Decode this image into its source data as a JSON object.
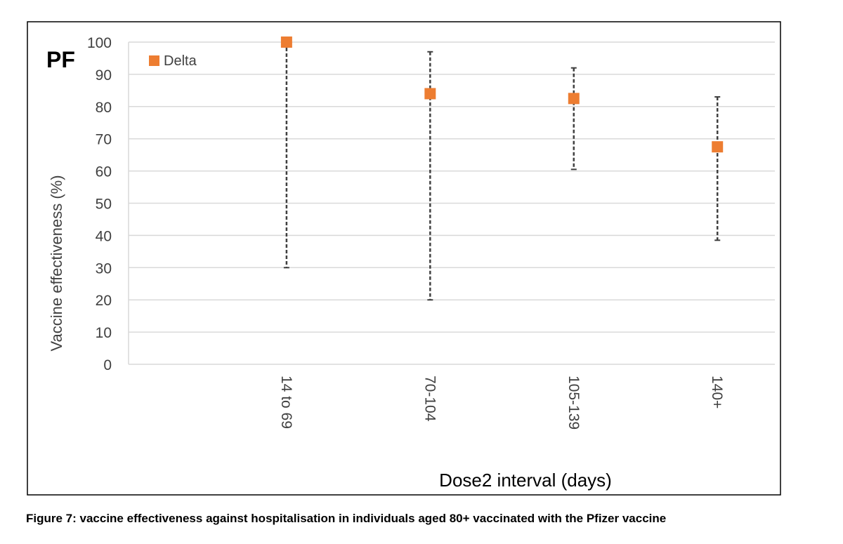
{
  "panel_label": "PF",
  "caption": "Figure 7: vaccine effectiveness against hospitalisation in individuals aged 80+ vaccinated with  the Pfizer vaccine",
  "chart_data": {
    "type": "scatter",
    "categories": [
      "14 to 69",
      "70-104",
      "105-139",
      "140+"
    ],
    "series": [
      {
        "name": "Delta",
        "color": "#ED7D31",
        "values": [
          100,
          84,
          82.5,
          67.5
        ],
        "ci_lower": [
          30,
          20,
          60.5,
          38.5
        ],
        "ci_upper": [
          100,
          97,
          92,
          83
        ]
      }
    ],
    "title": "",
    "xlabel": "Dose2 interval (days)",
    "ylabel": "Vaccine effectiveness (%)",
    "ylim": [
      0,
      100
    ],
    "yticks": [
      "0",
      "10",
      "20",
      "30",
      "40",
      "50",
      "60",
      "70",
      "80",
      "90",
      "100"
    ],
    "grid": true,
    "legend": "top-left",
    "error_bar_style": "dashed",
    "error_bar_color": "#404040",
    "grid_color": "#d9d9d9"
  }
}
